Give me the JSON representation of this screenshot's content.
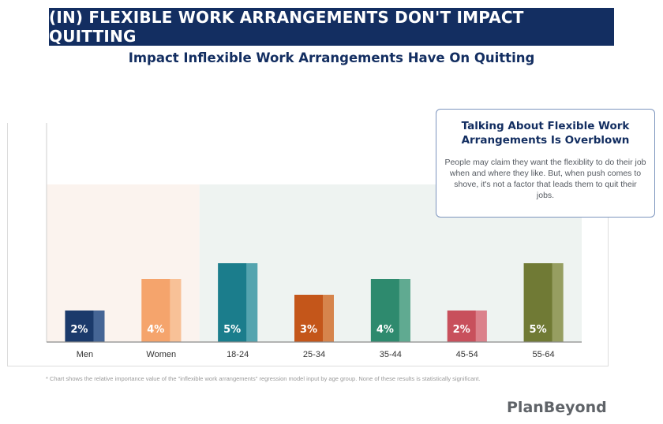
{
  "banner": {
    "title": "(IN) FLEXIBLE WORK ARRANGEMENTS DON'T IMPACT QUITTING"
  },
  "subtitle": "Impact Inflexible Work Arrangements Have On Quitting",
  "callout": {
    "title": "Talking About Flexible Work Arrangements Is Overblown",
    "body": "People may claim they want the flexiblity to do their job when and where they like. But, when push comes to shove, it's not a factor that leads them to quit their jobs."
  },
  "footnote": "* Chart shows the relative importance value of the \"inflexible work arrangements\" regression model input by age group. None of these results is statistically significant.",
  "logo": "PlanBeyond",
  "chart_data": {
    "type": "bar",
    "title": "Impact Inflexible Work Arrangements Have On Quitting",
    "categories": [
      "Men",
      "Women",
      "18-24",
      "25-34",
      "35-44",
      "45-54",
      "55-64"
    ],
    "values": [
      2,
      4,
      5,
      3,
      4,
      2,
      5
    ],
    "value_labels": [
      "2%",
      "4%",
      "5%",
      "3%",
      "4%",
      "2%",
      "5%"
    ],
    "colors": [
      "#1b3a6b",
      "#f5a46c",
      "#1b7d8c",
      "#c4561a",
      "#2e8a6e",
      "#c8505c",
      "#707a35"
    ],
    "highlight_colors": [
      "#4a6a9a",
      "#f8c49c",
      "#5ba9b2",
      "#d88a52",
      "#66ad95",
      "#dd8690",
      "#9aa266"
    ],
    "ylim": [
      0,
      10
    ],
    "background_bands": [
      {
        "from": "Men",
        "to": "Women",
        "color": "#fbf3ee"
      },
      {
        "from": "18-24",
        "to": "55-64",
        "color": "#eef3f1"
      }
    ],
    "grid": false,
    "legend": "none"
  }
}
